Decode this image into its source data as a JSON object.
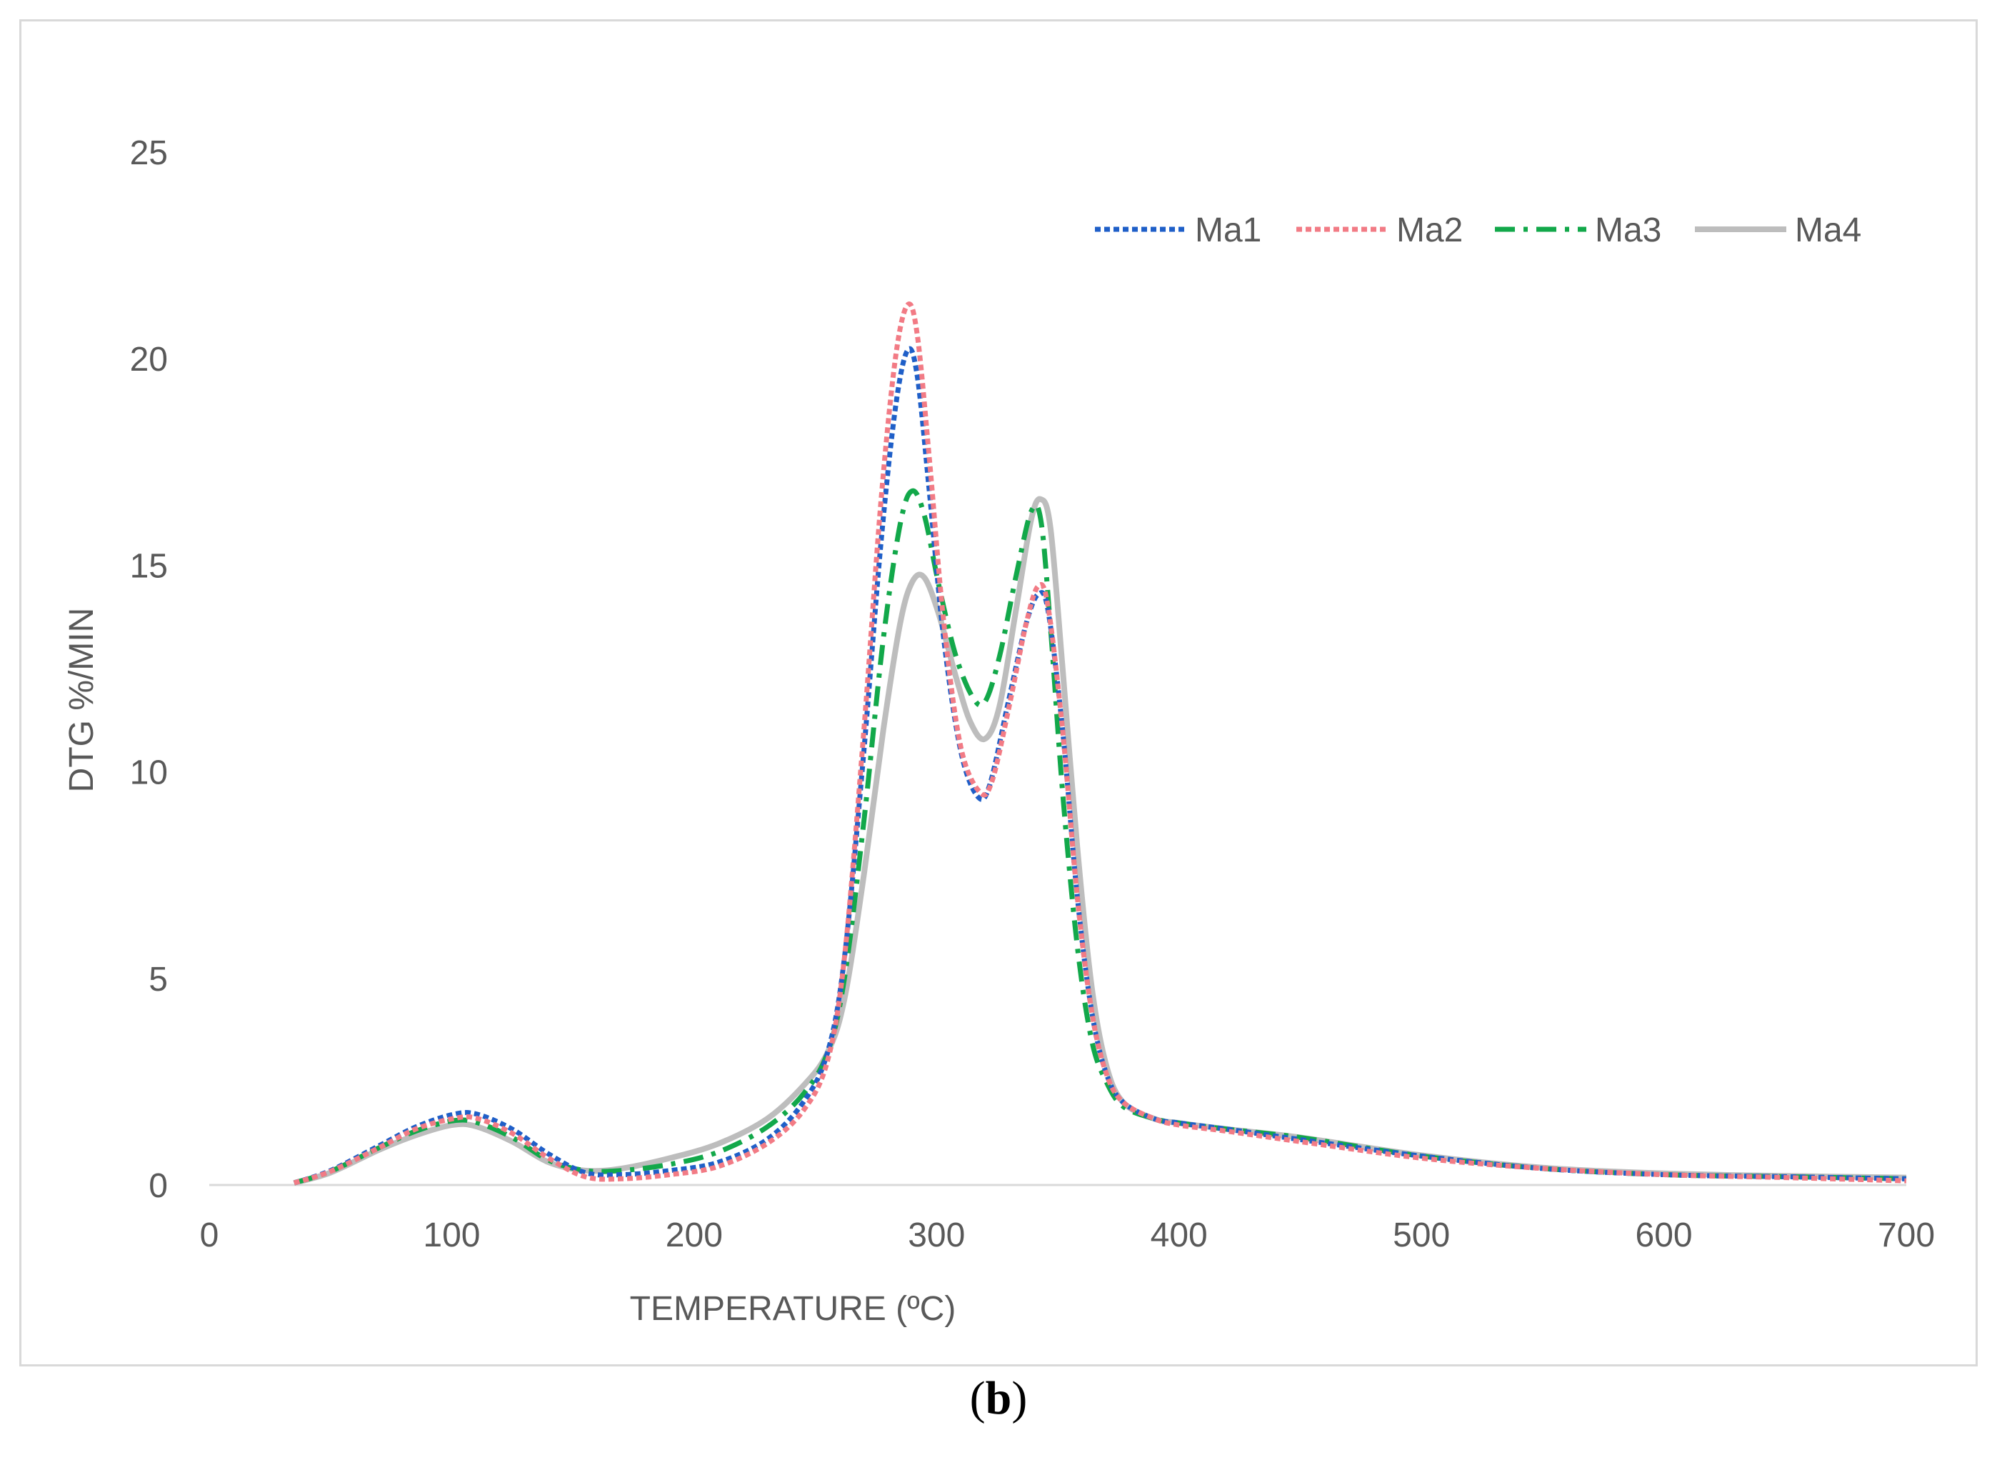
{
  "chart_data": {
    "type": "line",
    "title": "",
    "xlabel": "TEMPERATURE (ºC)",
    "ylabel": "DTG %/MIN",
    "xlim": [
      0,
      700
    ],
    "ylim": [
      0,
      25
    ],
    "x_ticks": [
      "0",
      "100",
      "200",
      "300",
      "400",
      "500",
      "600",
      "700"
    ],
    "y_ticks": [
      "0",
      "5",
      "10",
      "15",
      "20",
      "25"
    ],
    "grid": false,
    "legend_position": "top-right",
    "series": [
      {
        "name": "Ma1",
        "color": "#1f5fc8",
        "dash": "dotted",
        "points": [
          [
            35,
            0.05
          ],
          [
            50,
            0.35
          ],
          [
            70,
            0.95
          ],
          [
            85,
            1.4
          ],
          [
            100,
            1.7
          ],
          [
            110,
            1.72
          ],
          [
            125,
            1.35
          ],
          [
            140,
            0.75
          ],
          [
            155,
            0.3
          ],
          [
            170,
            0.25
          ],
          [
            190,
            0.35
          ],
          [
            210,
            0.55
          ],
          [
            230,
            1.1
          ],
          [
            245,
            2.0
          ],
          [
            255,
            3.2
          ],
          [
            262,
            5.5
          ],
          [
            270,
            10.5
          ],
          [
            277,
            15.5
          ],
          [
            283,
            18.8
          ],
          [
            288,
            20.2
          ],
          [
            292,
            19.6
          ],
          [
            297,
            16.8
          ],
          [
            303,
            13.2
          ],
          [
            310,
            10.5
          ],
          [
            317,
            9.4
          ],
          [
            322,
            9.7
          ],
          [
            330,
            11.8
          ],
          [
            337,
            13.6
          ],
          [
            342,
            14.3
          ],
          [
            346,
            13.9
          ],
          [
            352,
            11.0
          ],
          [
            358,
            7.0
          ],
          [
            364,
            4.2
          ],
          [
            370,
            2.7
          ],
          [
            377,
            2.0
          ],
          [
            390,
            1.6
          ],
          [
            400,
            1.5
          ],
          [
            420,
            1.35
          ],
          [
            450,
            1.1
          ],
          [
            500,
            0.7
          ],
          [
            550,
            0.4
          ],
          [
            600,
            0.25
          ],
          [
            650,
            0.2
          ],
          [
            700,
            0.15
          ]
        ]
      },
      {
        "name": "Ma2",
        "color": "#f27b85",
        "dash": "dotted",
        "points": [
          [
            35,
            0.05
          ],
          [
            50,
            0.33
          ],
          [
            70,
            0.9
          ],
          [
            85,
            1.35
          ],
          [
            100,
            1.6
          ],
          [
            110,
            1.62
          ],
          [
            125,
            1.25
          ],
          [
            140,
            0.65
          ],
          [
            155,
            0.2
          ],
          [
            170,
            0.15
          ],
          [
            190,
            0.25
          ],
          [
            210,
            0.45
          ],
          [
            230,
            1.0
          ],
          [
            245,
            1.8
          ],
          [
            255,
            3.0
          ],
          [
            262,
            5.5
          ],
          [
            270,
            11.0
          ],
          [
            277,
            16.5
          ],
          [
            283,
            20.0
          ],
          [
            288,
            21.3
          ],
          [
            292,
            20.6
          ],
          [
            297,
            17.6
          ],
          [
            303,
            13.6
          ],
          [
            310,
            10.6
          ],
          [
            318,
            9.5
          ],
          [
            323,
            9.8
          ],
          [
            330,
            11.6
          ],
          [
            337,
            13.6
          ],
          [
            342,
            14.5
          ],
          [
            346,
            14.0
          ],
          [
            352,
            11.0
          ],
          [
            358,
            7.0
          ],
          [
            364,
            4.2
          ],
          [
            370,
            2.7
          ],
          [
            377,
            2.0
          ],
          [
            390,
            1.6
          ],
          [
            400,
            1.45
          ],
          [
            420,
            1.3
          ],
          [
            450,
            1.05
          ],
          [
            500,
            0.65
          ],
          [
            550,
            0.4
          ],
          [
            600,
            0.25
          ],
          [
            650,
            0.18
          ],
          [
            700,
            0.1
          ]
        ]
      },
      {
        "name": "Ma3",
        "color": "#12a84a",
        "dash": "dashdot",
        "points": [
          [
            35,
            0.05
          ],
          [
            50,
            0.33
          ],
          [
            70,
            0.9
          ],
          [
            85,
            1.3
          ],
          [
            100,
            1.55
          ],
          [
            110,
            1.52
          ],
          [
            125,
            1.15
          ],
          [
            140,
            0.6
          ],
          [
            155,
            0.35
          ],
          [
            170,
            0.35
          ],
          [
            190,
            0.5
          ],
          [
            210,
            0.8
          ],
          [
            230,
            1.4
          ],
          [
            245,
            2.2
          ],
          [
            255,
            3.2
          ],
          [
            262,
            5.0
          ],
          [
            270,
            8.8
          ],
          [
            278,
            13.2
          ],
          [
            285,
            16.0
          ],
          [
            290,
            16.8
          ],
          [
            295,
            16.2
          ],
          [
            301,
            14.5
          ],
          [
            308,
            12.8
          ],
          [
            315,
            11.8
          ],
          [
            320,
            11.7
          ],
          [
            326,
            12.8
          ],
          [
            333,
            14.8
          ],
          [
            339,
            16.3
          ],
          [
            343,
            16.1
          ],
          [
            347,
            13.5
          ],
          [
            352,
            9.5
          ],
          [
            358,
            5.8
          ],
          [
            364,
            3.5
          ],
          [
            370,
            2.5
          ],
          [
            377,
            1.9
          ],
          [
            390,
            1.6
          ],
          [
            400,
            1.5
          ],
          [
            420,
            1.35
          ],
          [
            450,
            1.15
          ],
          [
            500,
            0.7
          ],
          [
            550,
            0.4
          ],
          [
            600,
            0.25
          ],
          [
            650,
            0.2
          ],
          [
            700,
            0.15
          ]
        ]
      },
      {
        "name": "Ma4",
        "color": "#bdbdbd",
        "dash": "solid",
        "points": [
          [
            35,
            0.05
          ],
          [
            50,
            0.3
          ],
          [
            70,
            0.85
          ],
          [
            85,
            1.2
          ],
          [
            100,
            1.45
          ],
          [
            110,
            1.42
          ],
          [
            125,
            1.05
          ],
          [
            140,
            0.55
          ],
          [
            155,
            0.35
          ],
          [
            170,
            0.4
          ],
          [
            190,
            0.65
          ],
          [
            210,
            1.0
          ],
          [
            230,
            1.6
          ],
          [
            245,
            2.4
          ],
          [
            255,
            3.2
          ],
          [
            262,
            4.5
          ],
          [
            270,
            7.5
          ],
          [
            278,
            11.0
          ],
          [
            285,
            13.6
          ],
          [
            290,
            14.6
          ],
          [
            295,
            14.7
          ],
          [
            301,
            13.8
          ],
          [
            308,
            12.3
          ],
          [
            314,
            11.2
          ],
          [
            320,
            10.8
          ],
          [
            326,
            11.6
          ],
          [
            333,
            14.0
          ],
          [
            339,
            16.1
          ],
          [
            343,
            16.6
          ],
          [
            347,
            15.9
          ],
          [
            352,
            12.5
          ],
          [
            358,
            8.2
          ],
          [
            364,
            4.8
          ],
          [
            370,
            2.9
          ],
          [
            377,
            2.0
          ],
          [
            390,
            1.6
          ],
          [
            400,
            1.5
          ],
          [
            420,
            1.35
          ],
          [
            450,
            1.15
          ],
          [
            500,
            0.72
          ],
          [
            550,
            0.42
          ],
          [
            600,
            0.28
          ],
          [
            650,
            0.22
          ],
          [
            700,
            0.18
          ]
        ]
      }
    ]
  },
  "panel_label": {
    "open": "(",
    "letter": "b",
    "close": ")"
  }
}
